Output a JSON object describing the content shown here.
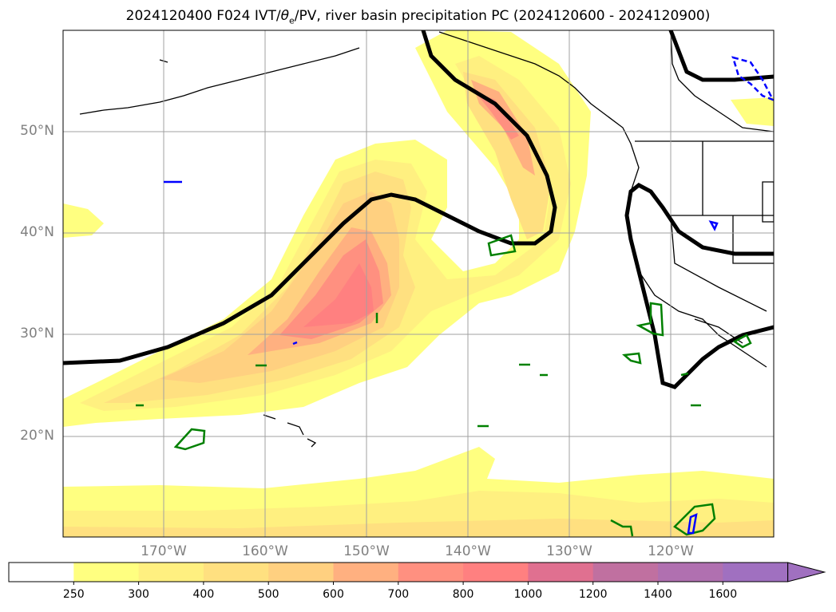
{
  "title": "2024120400 F024 IVT/θe/PV, river basin precipitation PC (2024120600 - 2024120900)",
  "title_parts": {
    "prefix": "2024120400 F024 IVT/",
    "theta": "θ",
    "sub": "e",
    "suffix": "/PV, river basin precipitation PC (2024120600 - 2024120900)"
  },
  "map": {
    "lat_labels": [
      "50°N",
      "40°N",
      "30°N",
      "20°N"
    ],
    "lon_labels": [
      "170°W",
      "160°W",
      "150°W",
      "140°W",
      "130°W",
      "120°W"
    ],
    "grid": true,
    "land_color": "#ffffff",
    "ocean_color": "#ffffff"
  },
  "colorbar": {
    "levels": [
      "250",
      "300",
      "400",
      "500",
      "600",
      "700",
      "800",
      "1000",
      "1200",
      "1400",
      "1600"
    ],
    "colors": [
      "#ffffff",
      "#ffff80",
      "#fff080",
      "#ffe080",
      "#ffd080",
      "#ffb080",
      "#ff9080",
      "#ff8080",
      "#e07090",
      "#c070a0",
      "#b070b0",
      "#a070c0"
    ],
    "extend": "max"
  }
}
